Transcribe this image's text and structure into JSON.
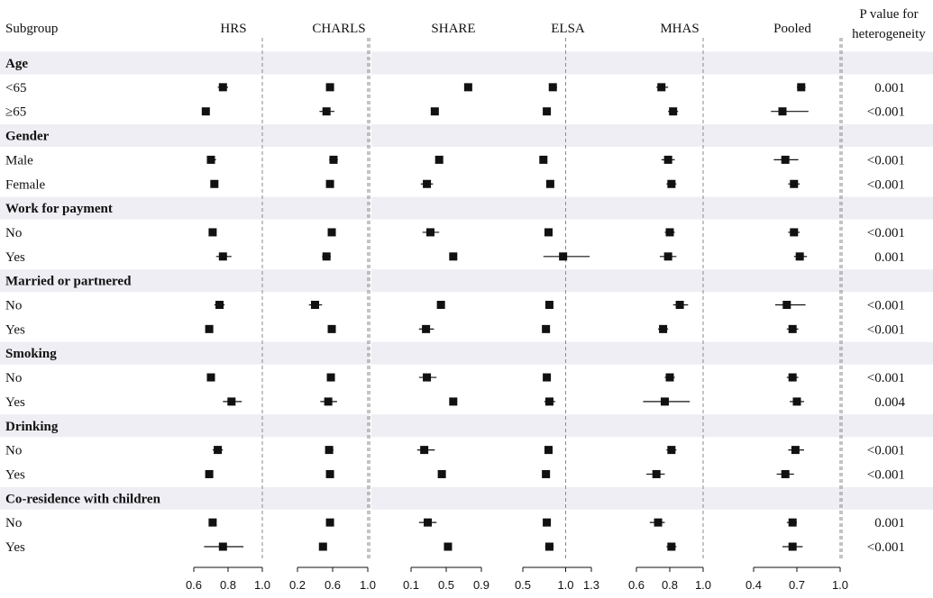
{
  "chart_data": {
    "type": "forest",
    "subgroup_header": "Subgroup",
    "p_header": [
      "P value for",
      "heterogeneity"
    ],
    "panels": [
      {
        "name": "HRS",
        "xlim": [
          0.6,
          1.0
        ],
        "ticks": [
          "0.6",
          "0.8",
          "1.0"
        ],
        "ref": 1.0
      },
      {
        "name": "CHARLS",
        "xlim": [
          0.2,
          1.0
        ],
        "ticks": [
          "0.2",
          "0.6",
          "1.0"
        ],
        "ref": 1.0
      },
      {
        "name": "SHARE",
        "xlim": [
          0.1,
          0.9
        ],
        "ticks": [
          "0.1",
          "0.5",
          "0.9"
        ],
        "ref": null
      },
      {
        "name": "ELSA",
        "xlim": [
          0.5,
          1.3
        ],
        "ticks": [
          "0.5",
          "1.0",
          "1.3"
        ],
        "ref": 1.0
      },
      {
        "name": "MHAS",
        "xlim": [
          0.6,
          1.0
        ],
        "ticks": [
          "0.6",
          "0.8",
          "1.0"
        ],
        "ref": 1.0
      },
      {
        "name": "Pooled",
        "xlim": [
          0.4,
          1.0
        ],
        "ticks": [
          "0.4",
          "0.7",
          "1.0"
        ],
        "ref": 1.0
      }
    ],
    "groups": [
      {
        "header": "Age",
        "rows": [
          {
            "label": "<65",
            "p": "0.001",
            "est": [
              [
                0.77,
                0.74,
                0.8
              ],
              [
                0.57,
                0.53,
                0.61
              ],
              [
                0.75,
                0.74,
                0.76
              ],
              [
                0.85,
                0.81,
                0.9
              ],
              [
                0.75,
                0.72,
                0.79
              ],
              [
                0.73,
                0.7,
                0.76
              ]
            ]
          },
          {
            "label": "≥65",
            "p": "<0.001",
            "est": [
              [
                0.67,
                0.65,
                0.69
              ],
              [
                0.53,
                0.45,
                0.62
              ],
              [
                0.37,
                0.36,
                0.38
              ],
              [
                0.78,
                0.76,
                0.8
              ],
              [
                0.82,
                0.79,
                0.85
              ],
              [
                0.6,
                0.52,
                0.78
              ]
            ]
          }
        ]
      },
      {
        "header": "Gender",
        "rows": [
          {
            "label": "Male",
            "p": "<0.001",
            "est": [
              [
                0.7,
                0.68,
                0.73
              ],
              [
                0.61,
                0.56,
                0.66
              ],
              [
                0.42,
                0.41,
                0.43
              ],
              [
                0.74,
                0.71,
                0.77
              ],
              [
                0.79,
                0.75,
                0.83
              ],
              [
                0.62,
                0.54,
                0.71
              ]
            ]
          },
          {
            "label": "Female",
            "p": "<0.001",
            "est": [
              [
                0.72,
                0.7,
                0.74
              ],
              [
                0.57,
                0.53,
                0.61
              ],
              [
                0.28,
                0.21,
                0.35
              ],
              [
                0.82,
                0.79,
                0.85
              ],
              [
                0.81,
                0.78,
                0.84
              ],
              [
                0.68,
                0.64,
                0.72
              ]
            ]
          }
        ]
      },
      {
        "header": "Work for payment",
        "rows": [
          {
            "label": "No",
            "p": "<0.001",
            "est": [
              [
                0.71,
                0.69,
                0.73
              ],
              [
                0.59,
                0.55,
                0.63
              ],
              [
                0.32,
                0.23,
                0.42
              ],
              [
                0.8,
                0.78,
                0.82
              ],
              [
                0.8,
                0.77,
                0.83
              ],
              [
                0.68,
                0.64,
                0.72
              ]
            ]
          },
          {
            "label": "Yes",
            "p": "0.001",
            "est": [
              [
                0.77,
                0.73,
                0.82
              ],
              [
                0.53,
                0.48,
                0.58
              ],
              [
                0.58,
                0.57,
                0.6
              ],
              [
                0.97,
                0.74,
                1.28
              ],
              [
                0.79,
                0.74,
                0.84
              ],
              [
                0.72,
                0.68,
                0.77
              ]
            ]
          }
        ]
      },
      {
        "header": "Married or partnered",
        "rows": [
          {
            "label": "No",
            "p": "<0.001",
            "est": [
              [
                0.75,
                0.72,
                0.78
              ],
              [
                0.4,
                0.33,
                0.48
              ],
              [
                0.44,
                0.43,
                0.45
              ],
              [
                0.81,
                0.78,
                0.84
              ],
              [
                0.86,
                0.82,
                0.91
              ],
              [
                0.63,
                0.55,
                0.76
              ]
            ]
          },
          {
            "label": "Yes",
            "p": "<0.001",
            "est": [
              [
                0.69,
                0.67,
                0.71
              ],
              [
                0.59,
                0.56,
                0.63
              ],
              [
                0.27,
                0.19,
                0.36
              ],
              [
                0.77,
                0.75,
                0.8
              ],
              [
                0.76,
                0.73,
                0.79
              ],
              [
                0.67,
                0.63,
                0.71
              ]
            ]
          }
        ]
      },
      {
        "header": "Smoking",
        "rows": [
          {
            "label": "No",
            "p": "<0.001",
            "est": [
              [
                0.7,
                0.68,
                0.72
              ],
              [
                0.58,
                0.55,
                0.62
              ],
              [
                0.28,
                0.19,
                0.39
              ],
              [
                0.78,
                0.76,
                0.8
              ],
              [
                0.8,
                0.77,
                0.83
              ],
              [
                0.67,
                0.63,
                0.71
              ]
            ]
          },
          {
            "label": "Yes",
            "p": "0.004",
            "est": [
              [
                0.82,
                0.77,
                0.88
              ],
              [
                0.55,
                0.46,
                0.65
              ],
              [
                0.58,
                0.57,
                0.6
              ],
              [
                0.81,
                0.75,
                0.88
              ],
              [
                0.77,
                0.64,
                0.92
              ],
              [
                0.7,
                0.65,
                0.75
              ]
            ]
          }
        ]
      },
      {
        "header": "Drinking",
        "rows": [
          {
            "label": "No",
            "p": "<0.001",
            "est": [
              [
                0.74,
                0.71,
                0.77
              ],
              [
                0.56,
                0.52,
                0.61
              ],
              [
                0.25,
                0.17,
                0.37
              ],
              [
                0.8,
                0.77,
                0.84
              ],
              [
                0.81,
                0.78,
                0.84
              ],
              [
                0.69,
                0.64,
                0.75
              ]
            ]
          },
          {
            "label": "Yes",
            "p": "<0.001",
            "est": [
              [
                0.69,
                0.67,
                0.71
              ],
              [
                0.57,
                0.53,
                0.61
              ],
              [
                0.45,
                0.44,
                0.46
              ],
              [
                0.77,
                0.76,
                0.79
              ],
              [
                0.72,
                0.66,
                0.77
              ],
              [
                0.62,
                0.56,
                0.68
              ]
            ]
          }
        ]
      },
      {
        "header": "Co-residence with children",
        "rows": [
          {
            "label": "No",
            "p": "0.001",
            "est": [
              [
                0.71,
                0.69,
                0.73
              ],
              [
                0.57,
                0.54,
                0.61
              ],
              [
                0.29,
                0.19,
                0.39
              ],
              [
                0.78,
                0.76,
                0.8
              ],
              [
                0.73,
                0.68,
                0.77
              ],
              [
                0.67,
                0.63,
                0.7
              ]
            ]
          },
          {
            "label": "Yes",
            "p": "<0.001",
            "est": [
              [
                0.77,
                0.66,
                0.89
              ],
              [
                0.49,
                0.45,
                0.53
              ],
              [
                0.52,
                0.51,
                0.53
              ],
              [
                0.81,
                0.76,
                0.86
              ],
              [
                0.81,
                0.78,
                0.84
              ],
              [
                0.67,
                0.6,
                0.74
              ]
            ]
          }
        ]
      }
    ]
  }
}
